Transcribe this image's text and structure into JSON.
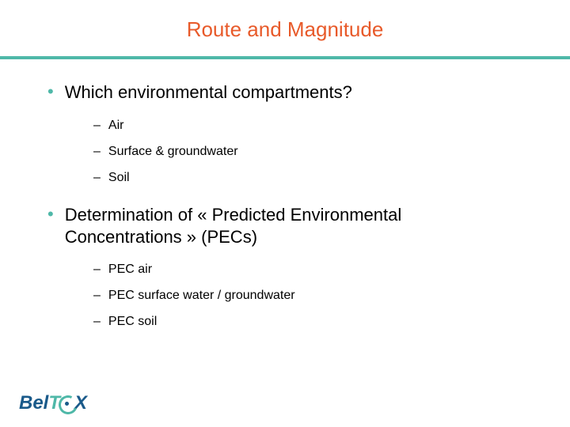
{
  "title": "Route and Magnitude",
  "colors": {
    "title": "#e85a2a",
    "divider": "#4fb8a8",
    "bullet": "#4fb8a8",
    "text": "#000000",
    "logo_primary": "#1a5a8a",
    "logo_accent": "#4fb8a8"
  },
  "bullets": [
    {
      "text": "Which environmental compartments?",
      "subs": [
        "Air",
        "Surface & groundwater",
        "Soil"
      ]
    },
    {
      "text": "Determination of « Predicted Environmental Concentrations » (PECs)",
      "subs": [
        "PEC air",
        "PEC surface water / groundwater",
        "PEC soil"
      ]
    }
  ],
  "logo": {
    "part1": "Bel",
    "part2": "T",
    "part3": "X"
  }
}
